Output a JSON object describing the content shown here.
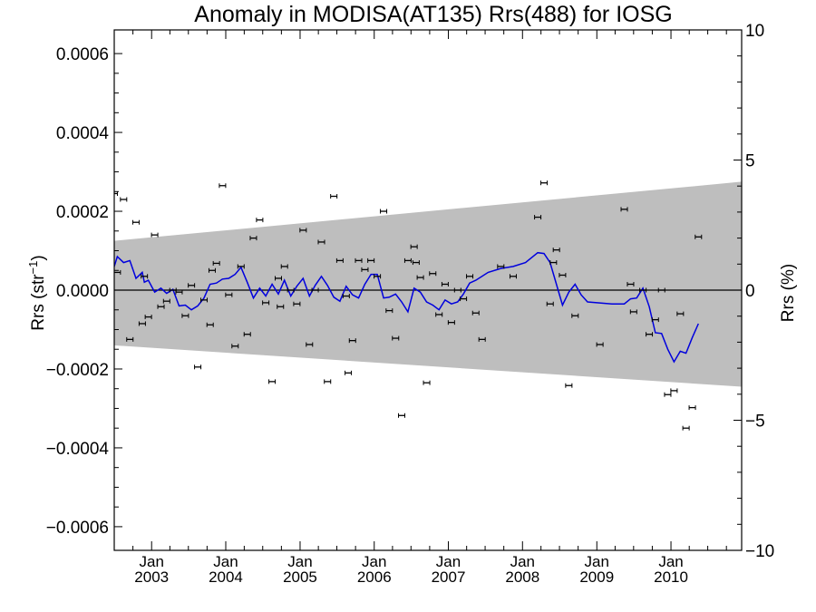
{
  "chart_data": {
    "type": "scatter",
    "title": "Anomaly in MODISA(AT135) Rrs(488) for IOSG",
    "ylabel_left": "Rrs (str",
    "ylabel_left_sup": "−1",
    "ylabel_left_close": ")",
    "ylabel_right": "Rrs (%)",
    "xlim": [
      "2002-07-01",
      "2010-12-15"
    ],
    "ylim": [
      -0.00066,
      0.00066
    ],
    "ylim_right": [
      -10,
      10
    ],
    "yticks_left": [
      {
        "value": 0.0006,
        "label": "0.0006"
      },
      {
        "value": 0.0004,
        "label": "0.0004"
      },
      {
        "value": 0.0002,
        "label": "0.0002"
      },
      {
        "value": 0.0,
        "label": "0.0000"
      },
      {
        "value": -0.0002,
        "label": "−0.0002"
      },
      {
        "value": -0.0004,
        "label": "−0.0004"
      },
      {
        "value": -0.0006,
        "label": "−0.0006"
      }
    ],
    "yticks_right": [
      {
        "value": 10,
        "label": "10"
      },
      {
        "value": 5,
        "label": "5"
      },
      {
        "value": 0,
        "label": "0"
      },
      {
        "value": -5,
        "label": "−5"
      },
      {
        "value": -10,
        "label": "−10"
      }
    ],
    "xticks": [
      {
        "date": "2003-01-01",
        "month": "Jan",
        "year": "2003"
      },
      {
        "date": "2004-01-01",
        "month": "Jan",
        "year": "2004"
      },
      {
        "date": "2005-01-01",
        "month": "Jan",
        "year": "2005"
      },
      {
        "date": "2006-01-01",
        "month": "Jan",
        "year": "2006"
      },
      {
        "date": "2007-01-01",
        "month": "Jan",
        "year": "2007"
      },
      {
        "date": "2008-01-01",
        "month": "Jan",
        "year": "2008"
      },
      {
        "date": "2009-01-01",
        "month": "Jan",
        "year": "2009"
      },
      {
        "date": "2010-01-01",
        "month": "Jan",
        "year": "2010"
      }
    ],
    "grid": false,
    "zero_line": true,
    "band": {
      "start": {
        "date": "2002-07-01",
        "upper": 0.000125,
        "lower": -0.00014
      },
      "end": {
        "date": "2010-12-15",
        "upper": 0.000275,
        "lower": -0.000245
      }
    },
    "series": [
      {
        "kind": "points-with-errorbars",
        "points": [
          [
            "2002-07-01",
            0.000245
          ],
          [
            "2002-07-16",
            4.5e-05
          ],
          [
            "2002-08-16",
            0.00023
          ],
          [
            "2002-09-16",
            -0.000125
          ],
          [
            "2002-10-16",
            0.000172
          ],
          [
            "2002-11-16",
            -8.5e-05
          ],
          [
            "2002-11-26",
            3.5e-05
          ],
          [
            "2002-12-16",
            -6.8e-05
          ],
          [
            "2003-01-16",
            0.00014
          ],
          [
            "2003-02-16",
            -4.2e-05
          ],
          [
            "2003-03-16",
            -2.8e-05
          ],
          [
            "2003-04-16",
            0.0
          ],
          [
            "2003-05-16",
            -5e-06
          ],
          [
            "2003-06-16",
            -6.5e-05
          ],
          [
            "2003-07-16",
            1.2e-05
          ],
          [
            "2003-08-16",
            -0.000195
          ],
          [
            "2003-09-16",
            -2.5e-05
          ],
          [
            "2003-10-16",
            -8.8e-05
          ],
          [
            "2003-10-26",
            5e-05
          ],
          [
            "2003-11-16",
            6.8e-05
          ],
          [
            "2003-12-16",
            0.000265
          ],
          [
            "2004-01-16",
            -1.2e-05
          ],
          [
            "2004-02-16",
            -0.000142
          ],
          [
            "2004-03-16",
            6e-05
          ],
          [
            "2004-04-16",
            -0.000112
          ],
          [
            "2004-05-16",
            0.000132
          ],
          [
            "2004-06-16",
            0.000178
          ],
          [
            "2004-07-16",
            -3.2e-05
          ],
          [
            "2004-08-16",
            -0.000232
          ],
          [
            "2004-09-16",
            3e-05
          ],
          [
            "2004-09-26",
            -4.2e-05
          ],
          [
            "2004-10-16",
            6e-05
          ],
          [
            "2004-11-16",
            0.0
          ],
          [
            "2004-12-16",
            -3.5e-05
          ],
          [
            "2005-01-16",
            0.000152
          ],
          [
            "2005-02-16",
            -0.000138
          ],
          [
            "2005-03-16",
            0.0
          ],
          [
            "2005-04-16",
            0.000122
          ],
          [
            "2005-05-16",
            -0.000232
          ],
          [
            "2005-06-16",
            0.000238
          ],
          [
            "2005-07-16",
            7.5e-05
          ],
          [
            "2005-08-16",
            -1.5e-05
          ],
          [
            "2005-08-26",
            -0.00021
          ],
          [
            "2005-09-16",
            -0.000128
          ],
          [
            "2005-10-16",
            7.5e-05
          ],
          [
            "2005-11-16",
            5.2e-05
          ],
          [
            "2005-12-16",
            7.5e-05
          ],
          [
            "2006-01-16",
            3.5e-05
          ],
          [
            "2006-02-16",
            0.0002
          ],
          [
            "2006-03-16",
            -5.2e-05
          ],
          [
            "2006-04-16",
            -0.000122
          ],
          [
            "2006-05-16",
            -0.000318
          ],
          [
            "2006-06-16",
            7.5e-05
          ],
          [
            "2006-07-16",
            0.00011
          ],
          [
            "2006-07-26",
            7e-05
          ],
          [
            "2006-08-16",
            3.2e-05
          ],
          [
            "2006-09-16",
            -0.000235
          ],
          [
            "2006-10-16",
            4.2e-05
          ],
          [
            "2006-11-16",
            -6.2e-05
          ],
          [
            "2006-12-16",
            1.5e-05
          ],
          [
            "2007-01-16",
            -8.2e-05
          ],
          [
            "2007-02-16",
            0.0
          ],
          [
            "2007-03-16",
            -2.2e-05
          ],
          [
            "2007-04-16",
            3.5e-05
          ],
          [
            "2007-05-16",
            -5.8e-05
          ],
          [
            "2007-06-16",
            -0.000125
          ],
          [
            "2007-09-16",
            6e-05
          ],
          [
            "2007-11-16",
            3.5e-05
          ],
          [
            "2008-03-16",
            0.000185
          ],
          [
            "2008-04-16",
            0.000272
          ],
          [
            "2008-05-16",
            -3.5e-05
          ],
          [
            "2008-06-01",
            7e-05
          ],
          [
            "2008-06-16",
            0.000102
          ],
          [
            "2008-07-16",
            3.8e-05
          ],
          [
            "2008-08-16",
            -0.000242
          ],
          [
            "2008-09-16",
            -6.5e-05
          ],
          [
            "2009-01-16",
            -0.000138
          ],
          [
            "2009-05-16",
            0.000205
          ],
          [
            "2009-06-16",
            1.5e-05
          ],
          [
            "2009-07-01",
            -5.5e-05
          ],
          [
            "2009-08-16",
            0.0
          ],
          [
            "2009-09-16",
            -0.000112
          ],
          [
            "2009-10-16",
            -7.5e-05
          ],
          [
            "2009-11-16",
            0.0
          ],
          [
            "2009-12-16",
            -0.000265
          ],
          [
            "2010-01-16",
            -0.000255
          ],
          [
            "2010-02-16",
            -6e-05
          ],
          [
            "2010-03-16",
            -0.00035
          ],
          [
            "2010-04-16",
            -0.000298
          ],
          [
            "2010-05-16",
            0.000135
          ]
        ]
      },
      {
        "kind": "line",
        "color": "#0000dd",
        "points": [
          [
            "2002-07-01",
            6e-05
          ],
          [
            "2002-07-16",
            8.5e-05
          ],
          [
            "2002-08-16",
            7e-05
          ],
          [
            "2002-09-16",
            7.5e-05
          ],
          [
            "2002-10-16",
            3e-05
          ],
          [
            "2002-11-16",
            4.5e-05
          ],
          [
            "2002-11-26",
            2e-05
          ],
          [
            "2002-12-16",
            2.5e-05
          ],
          [
            "2003-01-16",
            -5e-06
          ],
          [
            "2003-02-16",
            5e-06
          ],
          [
            "2003-03-16",
            -8e-06
          ],
          [
            "2003-04-16",
            2e-06
          ],
          [
            "2003-05-16",
            -4e-05
          ],
          [
            "2003-06-16",
            -3.8e-05
          ],
          [
            "2003-07-16",
            -5e-05
          ],
          [
            "2003-08-16",
            -4e-05
          ],
          [
            "2003-09-16",
            -2e-05
          ],
          [
            "2003-10-16",
            1.5e-05
          ],
          [
            "2003-11-16",
            1.8e-05
          ],
          [
            "2003-12-16",
            2.8e-05
          ],
          [
            "2004-01-16",
            3e-05
          ],
          [
            "2004-02-16",
            4e-05
          ],
          [
            "2004-03-16",
            5.8e-05
          ],
          [
            "2004-04-16",
            2e-05
          ],
          [
            "2004-05-16",
            -2e-05
          ],
          [
            "2004-06-16",
            5e-06
          ],
          [
            "2004-07-16",
            -1.5e-05
          ],
          [
            "2004-08-16",
            1.5e-05
          ],
          [
            "2004-09-16",
            -1e-05
          ],
          [
            "2004-10-16",
            2.5e-05
          ],
          [
            "2004-11-16",
            -1.5e-05
          ],
          [
            "2004-12-16",
            1e-05
          ],
          [
            "2005-01-16",
            3e-05
          ],
          [
            "2005-02-16",
            -1.5e-05
          ],
          [
            "2005-03-16",
            1.2e-05
          ],
          [
            "2005-04-16",
            3.5e-05
          ],
          [
            "2005-05-16",
            1.2e-05
          ],
          [
            "2005-06-16",
            -1.8e-05
          ],
          [
            "2005-07-16",
            -2.8e-05
          ],
          [
            "2005-08-16",
            1e-05
          ],
          [
            "2005-09-16",
            -1.2e-05
          ],
          [
            "2005-10-16",
            -2e-05
          ],
          [
            "2005-11-16",
            1.5e-05
          ],
          [
            "2005-12-16",
            4e-05
          ],
          [
            "2006-01-16",
            4e-05
          ],
          [
            "2006-02-16",
            -2e-05
          ],
          [
            "2006-03-16",
            -1.8e-05
          ],
          [
            "2006-04-16",
            -1e-05
          ],
          [
            "2006-05-16",
            -3e-05
          ],
          [
            "2006-06-16",
            -5.5e-05
          ],
          [
            "2006-07-16",
            5e-06
          ],
          [
            "2006-08-16",
            -5e-06
          ],
          [
            "2006-09-16",
            -3e-05
          ],
          [
            "2006-10-16",
            -3.8e-05
          ],
          [
            "2006-11-16",
            -5e-05
          ],
          [
            "2006-12-16",
            -2.5e-05
          ],
          [
            "2007-01-16",
            -3.5e-05
          ],
          [
            "2007-02-16",
            -3e-05
          ],
          [
            "2007-03-16",
            -1e-05
          ],
          [
            "2007-04-16",
            1.8e-05
          ],
          [
            "2007-05-16",
            2.5e-05
          ],
          [
            "2007-07-16",
            4.5e-05
          ],
          [
            "2007-09-16",
            5.5e-05
          ],
          [
            "2007-11-16",
            6e-05
          ],
          [
            "2008-01-16",
            7e-05
          ],
          [
            "2008-03-16",
            9.5e-05
          ],
          [
            "2008-04-16",
            9.3e-05
          ],
          [
            "2008-05-16",
            7e-05
          ],
          [
            "2008-06-16",
            1.5e-05
          ],
          [
            "2008-07-16",
            -3.8e-05
          ],
          [
            "2008-08-16",
            -5e-06
          ],
          [
            "2008-09-16",
            1.5e-05
          ],
          [
            "2008-10-16",
            -1.2e-05
          ],
          [
            "2008-11-16",
            -3e-05
          ],
          [
            "2009-03-16",
            -3.5e-05
          ],
          [
            "2009-05-16",
            -3.5e-05
          ],
          [
            "2009-06-16",
            -2.2e-05
          ],
          [
            "2009-07-16",
            -2e-05
          ],
          [
            "2009-08-16",
            5e-06
          ],
          [
            "2009-09-16",
            -4.2e-05
          ],
          [
            "2009-10-16",
            -0.000108
          ],
          [
            "2009-11-16",
            -0.00011
          ],
          [
            "2009-12-16",
            -0.00015
          ],
          [
            "2010-01-16",
            -0.000182
          ],
          [
            "2010-02-16",
            -0.000155
          ],
          [
            "2010-03-16",
            -0.00016
          ],
          [
            "2010-04-16",
            -0.00012
          ],
          [
            "2010-05-16",
            -8.5e-05
          ]
        ]
      }
    ]
  }
}
